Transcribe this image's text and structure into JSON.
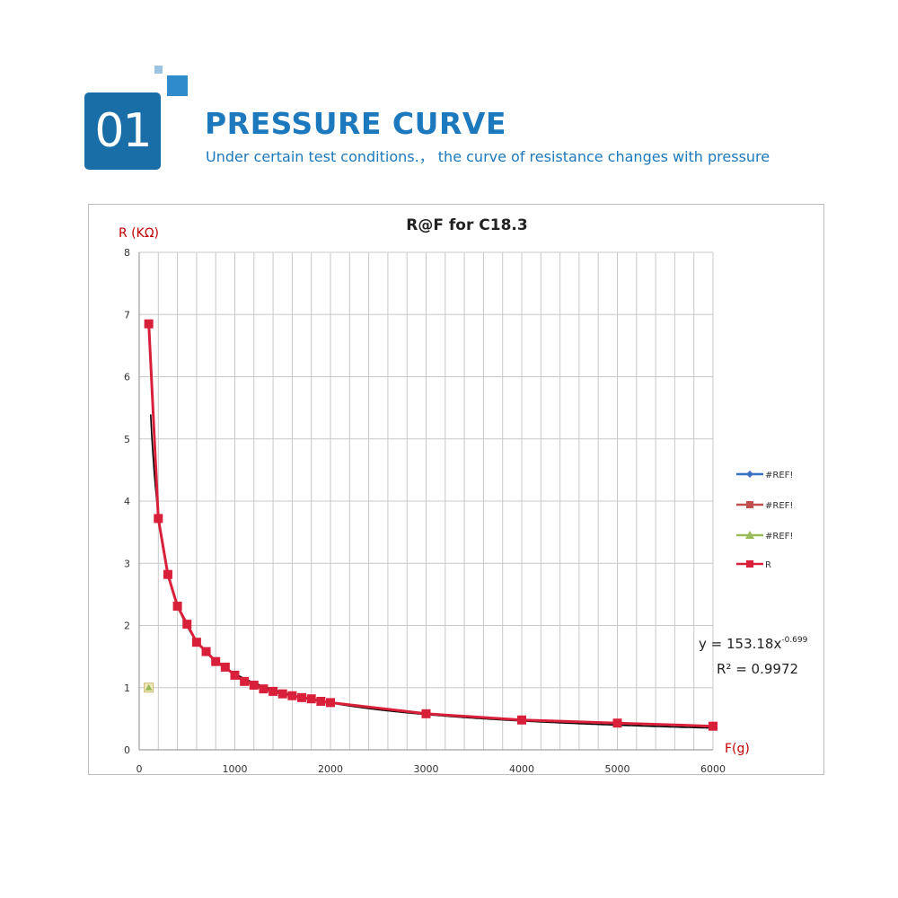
{
  "header": {
    "badge": "01",
    "title": "PRESSURE CURVE",
    "subtitle": "Under certain test conditions.，  the curve of resistance changes with pressure"
  },
  "colors": {
    "accent": "#1c79bd",
    "badge_bg": "#1a6ea8",
    "series_r": "#d9203a",
    "trendline": "#000000",
    "axis_label": "#c00000"
  },
  "chart_data": {
    "type": "scatter",
    "title": "R@F  for C18.3",
    "xlabel": "F(g)",
    "ylabel": "R (KΩ)",
    "xlim": [
      0,
      6000
    ],
    "ylim": [
      0,
      8
    ],
    "x_ticks": [
      "0",
      "1000",
      "2000",
      "3000",
      "4000",
      "5000",
      "6000"
    ],
    "y_ticks": [
      "0",
      "1",
      "2",
      "3",
      "4",
      "5",
      "6",
      "7",
      "8"
    ],
    "grid": true,
    "legend_position": "right",
    "series": [
      {
        "name": "#REF!",
        "color": "#3a6fc4",
        "marker": "diamond",
        "x": [],
        "y": []
      },
      {
        "name": "#REF!",
        "color": "#c0504d",
        "marker": "square",
        "x": [],
        "y": []
      },
      {
        "name": "#REF!",
        "color": "#9bbb59",
        "marker": "triangle",
        "x": [
          100
        ],
        "y": [
          1.0
        ]
      },
      {
        "name": "R",
        "color": "#d9203a",
        "marker": "square",
        "x": [
          100,
          200,
          300,
          400,
          500,
          600,
          700,
          800,
          900,
          1000,
          1100,
          1200,
          1300,
          1400,
          1500,
          1600,
          1700,
          1800,
          1900,
          2000,
          3000,
          4000,
          5000,
          6000
        ],
        "y": [
          6.85,
          3.72,
          2.82,
          2.31,
          2.02,
          1.73,
          1.58,
          1.42,
          1.33,
          1.2,
          1.1,
          1.04,
          0.98,
          0.94,
          0.9,
          0.87,
          0.84,
          0.82,
          0.78,
          0.76,
          0.58,
          0.48,
          0.43,
          0.38
        ]
      }
    ],
    "trendline": {
      "equation": "y = 153.18x",
      "exponent": "-0.699",
      "r_squared": "R² = 0.9972"
    }
  }
}
